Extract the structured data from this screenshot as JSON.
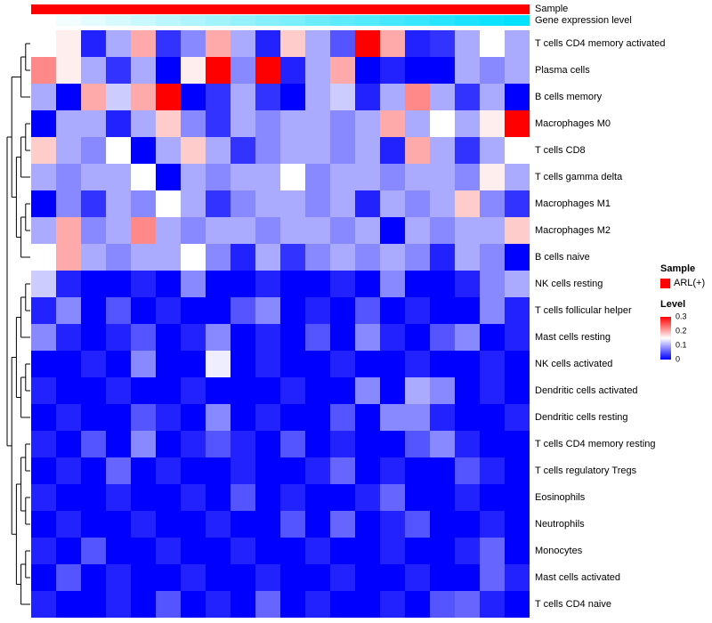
{
  "annotations": {
    "sample_label": "Sample",
    "gene_expression_label": "Gene expression level",
    "sample_color": "#FF0000"
  },
  "legend": {
    "sample_title": "Sample",
    "sample_items": [
      {
        "label": "ARL(+)",
        "color": "#FF0000"
      }
    ],
    "level_title": "Level",
    "level_ticks": [
      "0.3",
      "0.2",
      "0.1",
      "0"
    ]
  },
  "chart_data": {
    "type": "heatmap",
    "rows": [
      "T cells CD4 memory activated",
      "Plasma cells",
      "B cells memory",
      "Macrophages M0",
      "T cells CD8",
      "T cells gamma delta",
      "Macrophages M1",
      "Macrophages M2",
      "B cells naive",
      "NK cells resting",
      "T cells follicular helper",
      "Mast cells resting",
      "NK cells activated",
      "Dendritic cells activated",
      "Dendritic cells resting",
      "T cells CD4 memory resting",
      "T cells regulatory Tregs",
      "Eosinophils",
      "Neutrophils",
      "Monocytes",
      "Mast cells activated",
      "T cells CD4 naive"
    ],
    "n_cols": 20,
    "column_annotation": {
      "sample": {
        "label": "Sample",
        "value": "ARL(+)",
        "color": "#FF0000"
      },
      "gene_expression_level": {
        "label": "Gene expression level",
        "gradient_from": "#FFFFFF",
        "gradient_to": "#00E0FF"
      }
    },
    "level_scale": {
      "min": 0,
      "max": 0.3,
      "colors": [
        "#0000FF",
        "#FFFFFF",
        "#FF0000"
      ]
    },
    "values": [
      [
        0.15,
        0.16,
        0.02,
        0.1,
        0.2,
        0.03,
        0.08,
        0.2,
        0.1,
        0.02,
        0.18,
        0.1,
        0.05,
        0.3,
        0.2,
        0.02,
        0.03,
        0.1,
        0.15,
        0.1
      ],
      [
        0.22,
        0.16,
        0.1,
        0.03,
        0.1,
        0.0,
        0.16,
        0.3,
        0.08,
        0.3,
        0.02,
        0.1,
        0.2,
        0.0,
        0.02,
        0.0,
        0.0,
        0.1,
        0.08,
        0.1
      ],
      [
        0.1,
        0.0,
        0.2,
        0.12,
        0.2,
        0.3,
        0.0,
        0.03,
        0.1,
        0.03,
        0.0,
        0.1,
        0.12,
        0.02,
        0.1,
        0.22,
        0.1,
        0.03,
        0.1,
        0.0
      ],
      [
        0.0,
        0.1,
        0.1,
        0.02,
        0.1,
        0.18,
        0.08,
        0.03,
        0.1,
        0.08,
        0.1,
        0.1,
        0.08,
        0.1,
        0.2,
        0.1,
        0.15,
        0.1,
        0.16,
        0.3
      ],
      [
        0.18,
        0.1,
        0.08,
        0.15,
        0.0,
        0.1,
        0.18,
        0.1,
        0.03,
        0.08,
        0.1,
        0.1,
        0.08,
        0.1,
        0.02,
        0.2,
        0.1,
        0.03,
        0.1,
        0.15
      ],
      [
        0.1,
        0.08,
        0.1,
        0.1,
        0.15,
        0.0,
        0.1,
        0.08,
        0.1,
        0.1,
        0.15,
        0.08,
        0.1,
        0.1,
        0.08,
        0.1,
        0.1,
        0.08,
        0.16,
        0.1
      ],
      [
        0.0,
        0.08,
        0.03,
        0.1,
        0.08,
        0.15,
        0.1,
        0.03,
        0.08,
        0.1,
        0.1,
        0.08,
        0.1,
        0.02,
        0.1,
        0.08,
        0.1,
        0.18,
        0.08,
        0.03
      ],
      [
        0.1,
        0.2,
        0.08,
        0.1,
        0.22,
        0.1,
        0.08,
        0.1,
        0.1,
        0.08,
        0.1,
        0.1,
        0.08,
        0.1,
        0.0,
        0.1,
        0.08,
        0.1,
        0.1,
        0.18
      ],
      [
        0.15,
        0.2,
        0.1,
        0.08,
        0.1,
        0.1,
        0.15,
        0.08,
        0.02,
        0.1,
        0.03,
        0.08,
        0.1,
        0.08,
        0.1,
        0.08,
        0.02,
        0.1,
        0.08,
        0.0
      ],
      [
        0.12,
        0.02,
        0.0,
        0.0,
        0.02,
        0.0,
        0.08,
        0.0,
        0.0,
        0.02,
        0.0,
        0.0,
        0.02,
        0.0,
        0.08,
        0.0,
        0.0,
        0.02,
        0.08,
        0.1
      ],
      [
        0.02,
        0.08,
        0.0,
        0.05,
        0.0,
        0.02,
        0.0,
        0.0,
        0.05,
        0.08,
        0.0,
        0.02,
        0.0,
        0.05,
        0.0,
        0.02,
        0.0,
        0.0,
        0.08,
        0.02
      ],
      [
        0.08,
        0.02,
        0.0,
        0.02,
        0.05,
        0.0,
        0.02,
        0.08,
        0.0,
        0.02,
        0.0,
        0.05,
        0.0,
        0.08,
        0.02,
        0.0,
        0.05,
        0.08,
        0.0,
        0.02
      ],
      [
        0.0,
        0.0,
        0.02,
        0.0,
        0.08,
        0.0,
        0.0,
        0.14,
        0.0,
        0.02,
        0.0,
        0.0,
        0.02,
        0.0,
        0.0,
        0.02,
        0.0,
        0.0,
        0.02,
        0.0
      ],
      [
        0.02,
        0.0,
        0.0,
        0.02,
        0.0,
        0.0,
        0.02,
        0.0,
        0.0,
        0.0,
        0.02,
        0.0,
        0.0,
        0.08,
        0.0,
        0.1,
        0.08,
        0.0,
        0.02,
        0.0
      ],
      [
        0.0,
        0.02,
        0.0,
        0.0,
        0.05,
        0.02,
        0.0,
        0.08,
        0.0,
        0.02,
        0.0,
        0.0,
        0.05,
        0.0,
        0.08,
        0.08,
        0.02,
        0.0,
        0.0,
        0.02
      ],
      [
        0.02,
        0.0,
        0.05,
        0.0,
        0.08,
        0.0,
        0.02,
        0.05,
        0.02,
        0.0,
        0.05,
        0.0,
        0.02,
        0.0,
        0.0,
        0.05,
        0.08,
        0.02,
        0.0,
        0.0
      ],
      [
        0.0,
        0.02,
        0.0,
        0.06,
        0.0,
        0.02,
        0.0,
        0.0,
        0.02,
        0.0,
        0.0,
        0.02,
        0.06,
        0.0,
        0.02,
        0.0,
        0.0,
        0.05,
        0.02,
        0.0
      ],
      [
        0.02,
        0.0,
        0.0,
        0.02,
        0.0,
        0.0,
        0.02,
        0.0,
        0.05,
        0.0,
        0.02,
        0.0,
        0.0,
        0.02,
        0.06,
        0.0,
        0.0,
        0.02,
        0.0,
        0.0
      ],
      [
        0.0,
        0.02,
        0.0,
        0.0,
        0.02,
        0.0,
        0.0,
        0.02,
        0.0,
        0.0,
        0.05,
        0.0,
        0.06,
        0.0,
        0.02,
        0.05,
        0.0,
        0.0,
        0.02,
        0.0
      ],
      [
        0.02,
        0.0,
        0.05,
        0.0,
        0.0,
        0.02,
        0.0,
        0.0,
        0.02,
        0.0,
        0.0,
        0.02,
        0.0,
        0.0,
        0.02,
        0.0,
        0.0,
        0.02,
        0.06,
        0.0
      ],
      [
        0.0,
        0.05,
        0.0,
        0.02,
        0.0,
        0.0,
        0.02,
        0.0,
        0.0,
        0.02,
        0.0,
        0.0,
        0.02,
        0.0,
        0.0,
        0.02,
        0.0,
        0.0,
        0.06,
        0.02
      ],
      [
        0.02,
        0.0,
        0.0,
        0.02,
        0.0,
        0.05,
        0.0,
        0.02,
        0.0,
        0.06,
        0.0,
        0.02,
        0.0,
        0.0,
        0.02,
        0.0,
        0.05,
        0.06,
        0.02,
        0.0
      ]
    ],
    "row_dendrogram": [
      [
        [
          [
            0,
            1
          ],
          2
        ],
        [
          [
            [
              3,
              4
            ],
            5
          ],
          [
            [
              6,
              7
            ],
            8
          ]
        ]
      ],
      [
        [
          [
            [
              9,
              10
            ],
            11
          ],
          [
            [
              12,
              13
            ],
            14
          ]
        ],
        [
          [
            [
              15,
              16
            ],
            [
              17,
              18
            ]
          ],
          [
            [
              19,
              20
            ],
            21
          ]
        ]
      ]
    ]
  }
}
